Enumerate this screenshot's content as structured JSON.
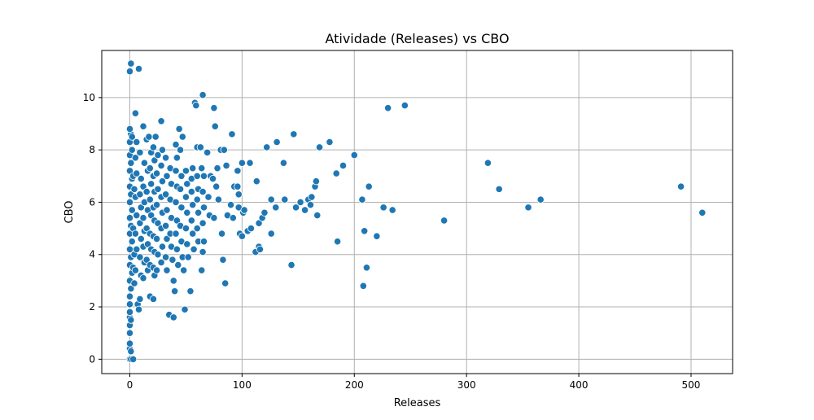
{
  "chart_data": {
    "type": "scatter",
    "title": "Atividade (Releases) vs CBO",
    "xlabel": "Releases",
    "ylabel": "CBO",
    "xlim": [
      -25,
      537
    ],
    "ylim": [
      -0.55,
      11.8
    ],
    "xticks": [
      0,
      100,
      200,
      300,
      400,
      500
    ],
    "yticks": [
      0,
      2,
      4,
      6,
      8,
      10
    ],
    "grid": true,
    "marker_color": "#1f77b4",
    "marker_edge_color": "#ffffff",
    "points": [
      [
        0,
        11.0
      ],
      [
        1,
        11.3
      ],
      [
        8,
        11.1
      ],
      [
        0,
        0
      ],
      [
        1,
        0
      ],
      [
        3,
        0
      ],
      [
        0,
        0.4
      ],
      [
        1,
        0.3
      ],
      [
        0,
        0.6
      ],
      [
        0,
        1.0
      ],
      [
        0,
        1.3
      ],
      [
        0,
        1.6
      ],
      [
        0,
        1.8
      ],
      [
        1,
        1.5
      ],
      [
        0,
        2.1
      ],
      [
        0,
        2.4
      ],
      [
        1,
        2.7
      ],
      [
        0,
        3.0
      ],
      [
        2,
        3.3
      ],
      [
        0,
        3.6
      ],
      [
        1,
        3.9
      ],
      [
        0,
        4.2
      ],
      [
        2,
        4.5
      ],
      [
        0,
        4.8
      ],
      [
        1,
        5.1
      ],
      [
        0,
        5.4
      ],
      [
        2,
        5.7
      ],
      [
        0,
        6.0
      ],
      [
        1,
        6.3
      ],
      [
        0,
        6.6
      ],
      [
        2,
        6.9
      ],
      [
        0,
        7.2
      ],
      [
        1,
        7.5
      ],
      [
        0,
        7.8
      ],
      [
        2,
        8.0
      ],
      [
        0,
        8.3
      ],
      [
        1,
        8.6
      ],
      [
        0,
        8.8
      ],
      [
        2,
        8.5
      ],
      [
        3,
        7.0
      ],
      [
        4,
        6.5
      ],
      [
        3,
        5.0
      ],
      [
        4,
        4.0
      ],
      [
        3,
        3.5
      ],
      [
        4,
        2.9
      ],
      [
        5,
        9.4
      ],
      [
        6,
        8.3
      ],
      [
        5,
        7.7
      ],
      [
        6,
        7.1
      ],
      [
        5,
        6.2
      ],
      [
        6,
        5.5
      ],
      [
        5,
        4.8
      ],
      [
        6,
        4.2
      ],
      [
        5,
        3.4
      ],
      [
        7,
        2.1
      ],
      [
        8,
        1.9
      ],
      [
        9,
        2.3
      ],
      [
        9,
        7.9
      ],
      [
        10,
        6.9
      ],
      [
        9,
        6.3
      ],
      [
        10,
        5.8
      ],
      [
        9,
        5.2
      ],
      [
        10,
        4.6
      ],
      [
        9,
        3.9
      ],
      [
        10,
        3.2
      ],
      [
        12,
        8.9
      ],
      [
        13,
        7.5
      ],
      [
        12,
        6.6
      ],
      [
        13,
        6.0
      ],
      [
        12,
        5.4
      ],
      [
        13,
        4.9
      ],
      [
        12,
        4.3
      ],
      [
        13,
        3.7
      ],
      [
        12,
        3.1
      ],
      [
        15,
        8.4
      ],
      [
        16,
        7.2
      ],
      [
        15,
        6.4
      ],
      [
        16,
        5.7
      ],
      [
        15,
        5.0
      ],
      [
        16,
        4.4
      ],
      [
        15,
        3.8
      ],
      [
        16,
        3.4
      ],
      [
        18,
        2.4
      ],
      [
        17,
        8.5
      ],
      [
        19,
        7.9
      ],
      [
        18,
        7.3
      ],
      [
        19,
        6.7
      ],
      [
        18,
        6.1
      ],
      [
        19,
        5.5
      ],
      [
        18,
        4.8
      ],
      [
        19,
        4.2
      ],
      [
        18,
        3.6
      ],
      [
        21,
        2.3
      ],
      [
        21,
        8.1
      ],
      [
        22,
        7.6
      ],
      [
        21,
        7.0
      ],
      [
        22,
        6.4
      ],
      [
        21,
        5.8
      ],
      [
        22,
        5.3
      ],
      [
        21,
        4.7
      ],
      [
        22,
        4.1
      ],
      [
        21,
        3.5
      ],
      [
        22,
        3.2
      ],
      [
        23,
        8.5
      ],
      [
        25,
        7.8
      ],
      [
        24,
        7.1
      ],
      [
        25,
        6.5
      ],
      [
        24,
        5.9
      ],
      [
        25,
        5.2
      ],
      [
        24,
        4.6
      ],
      [
        25,
        4.0
      ],
      [
        24,
        3.4
      ],
      [
        28,
        9.1
      ],
      [
        29,
        8.0
      ],
      [
        28,
        7.4
      ],
      [
        29,
        6.8
      ],
      [
        28,
        6.2
      ],
      [
        29,
        5.6
      ],
      [
        28,
        5.0
      ],
      [
        29,
        4.3
      ],
      [
        28,
        3.7
      ],
      [
        32,
        7.7
      ],
      [
        33,
        7.0
      ],
      [
        32,
        6.3
      ],
      [
        33,
        5.7
      ],
      [
        32,
        5.1
      ],
      [
        33,
        4.6
      ],
      [
        32,
        3.9
      ],
      [
        33,
        3.4
      ],
      [
        35,
        1.7
      ],
      [
        36,
        7.3
      ],
      [
        37,
        6.7
      ],
      [
        36,
        6.1
      ],
      [
        37,
        5.4
      ],
      [
        36,
        4.8
      ],
      [
        37,
        4.3
      ],
      [
        38,
        3.8
      ],
      [
        39,
        3.0
      ],
      [
        40,
        2.6
      ],
      [
        39,
        1.6
      ],
      [
        41,
        8.2
      ],
      [
        42,
        7.7
      ],
      [
        41,
        7.2
      ],
      [
        42,
        6.6
      ],
      [
        41,
        6.0
      ],
      [
        42,
        5.3
      ],
      [
        41,
        4.8
      ],
      [
        42,
        4.2
      ],
      [
        43,
        3.6
      ],
      [
        44,
        8.8
      ],
      [
        45,
        8.0
      ],
      [
        46,
        7.0
      ],
      [
        45,
        6.5
      ],
      [
        46,
        5.8
      ],
      [
        45,
        5.1
      ],
      [
        46,
        4.5
      ],
      [
        47,
        3.9
      ],
      [
        48,
        3.4
      ],
      [
        47,
        8.5
      ],
      [
        49,
        1.9
      ],
      [
        50,
        7.2
      ],
      [
        51,
        6.7
      ],
      [
        50,
        6.2
      ],
      [
        51,
        5.6
      ],
      [
        50,
        5.0
      ],
      [
        51,
        4.4
      ],
      [
        52,
        3.9
      ],
      [
        54,
        2.6
      ],
      [
        55,
        6.9
      ],
      [
        56,
        7.3
      ],
      [
        55,
        6.4
      ],
      [
        56,
        5.9
      ],
      [
        55,
        5.3
      ],
      [
        56,
        4.8
      ],
      [
        57,
        4.2
      ],
      [
        58,
        9.8
      ],
      [
        59,
        9.7
      ],
      [
        60,
        8.1
      ],
      [
        60,
        7.0
      ],
      [
        61,
        6.5
      ],
      [
        60,
        6.1
      ],
      [
        61,
        5.6
      ],
      [
        60,
        5.0
      ],
      [
        61,
        4.5
      ],
      [
        63,
        8.1
      ],
      [
        64,
        7.3
      ],
      [
        65,
        10.1
      ],
      [
        66,
        7.0
      ],
      [
        65,
        6.4
      ],
      [
        66,
        5.8
      ],
      [
        65,
        5.2
      ],
      [
        66,
        4.5
      ],
      [
        64,
        3.4
      ],
      [
        65,
        4.1
      ],
      [
        69,
        7.9
      ],
      [
        70,
        6.2
      ],
      [
        71,
        5.5
      ],
      [
        72,
        7.0
      ],
      [
        74,
        6.9
      ],
      [
        75,
        9.6
      ],
      [
        76,
        8.9
      ],
      [
        77,
        6.6
      ],
      [
        75,
        5.4
      ],
      [
        78,
        7.3
      ],
      [
        79,
        6.1
      ],
      [
        81,
        8.0
      ],
      [
        82,
        4.8
      ],
      [
        83,
        3.8
      ],
      [
        85,
        2.9
      ],
      [
        86,
        7.4
      ],
      [
        84,
        8.0
      ],
      [
        87,
        5.5
      ],
      [
        90,
        5.9
      ],
      [
        91,
        8.6
      ],
      [
        93,
        6.6
      ],
      [
        92,
        5.4
      ],
      [
        96,
        7.2
      ],
      [
        96,
        6.6
      ],
      [
        97,
        6.3
      ],
      [
        97,
        5.8
      ],
      [
        98,
        4.8
      ],
      [
        100,
        4.7
      ],
      [
        101,
        5.6
      ],
      [
        100,
        7.5
      ],
      [
        102,
        5.7
      ],
      [
        105,
        4.9
      ],
      [
        107,
        7.5
      ],
      [
        108,
        5.0
      ],
      [
        112,
        4.1
      ],
      [
        113,
        6.8
      ],
      [
        115,
        4.3
      ],
      [
        115,
        5.2
      ],
      [
        116,
        4.2
      ],
      [
        118,
        5.4
      ],
      [
        120,
        5.6
      ],
      [
        122,
        8.1
      ],
      [
        126,
        6.1
      ],
      [
        126,
        4.8
      ],
      [
        130,
        5.8
      ],
      [
        131,
        8.3
      ],
      [
        137,
        7.5
      ],
      [
        138,
        6.1
      ],
      [
        144,
        3.6
      ],
      [
        146,
        8.6
      ],
      [
        148,
        5.8
      ],
      [
        152,
        6.0
      ],
      [
        156,
        5.7
      ],
      [
        159,
        6.1
      ],
      [
        161,
        5.9
      ],
      [
        162,
        6.2
      ],
      [
        165,
        6.6
      ],
      [
        166,
        6.8
      ],
      [
        167,
        5.5
      ],
      [
        169,
        8.1
      ],
      [
        178,
        8.3
      ],
      [
        184,
        7.1
      ],
      [
        185,
        4.5
      ],
      [
        190,
        7.4
      ],
      [
        200,
        7.8
      ],
      [
        207,
        6.1
      ],
      [
        208,
        2.8
      ],
      [
        209,
        4.9
      ],
      [
        211,
        3.5
      ],
      [
        213,
        6.6
      ],
      [
        220,
        4.7
      ],
      [
        226,
        5.8
      ],
      [
        230,
        9.6
      ],
      [
        234,
        5.7
      ],
      [
        245,
        9.7
      ],
      [
        280,
        5.3
      ],
      [
        319,
        7.5
      ],
      [
        329,
        6.5
      ],
      [
        355,
        5.8
      ],
      [
        366,
        6.1
      ],
      [
        491,
        6.6
      ],
      [
        510,
        5.6
      ]
    ]
  }
}
